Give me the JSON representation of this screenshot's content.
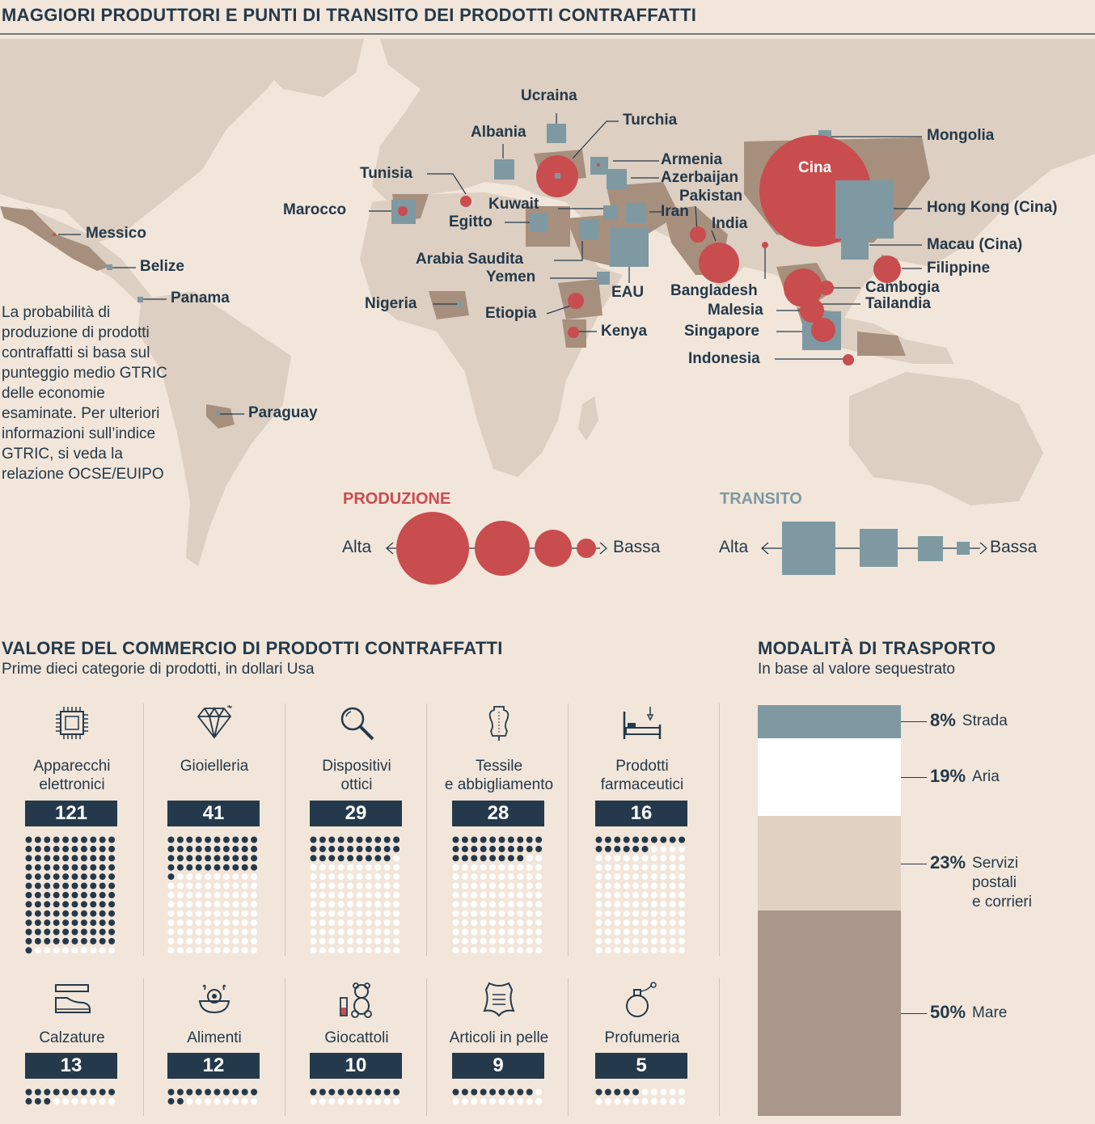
{
  "map": {
    "title": "MAGGIORI PRODUTTORI E PUNTI DI TRANSITO DEI PRODOTTI CONTRAFFATTI",
    "note": "La probabilità di produzione di prodotti contraffatti si basa sul punteggio medio GTRIC delle economie esaminate. Per ulteriori informazioni sull’indice GTRIC, si veda la relazione OCSE/EUIPO",
    "labels": [
      "Ucraina",
      "Turchia",
      "Albania",
      "Armenia",
      "Azerbaijan",
      "Tunisia",
      "Pakistan",
      "Marocco",
      "Kuwait",
      "Iran",
      "Egitto",
      "India",
      "Arabia Saudita",
      "Yemen",
      "EAU",
      "Bangladesh",
      "Nigeria",
      "Etiopia",
      "Kenya",
      "Messico",
      "Belize",
      "Panama",
      "Paraguay",
      "Cina",
      "Mongolia",
      "Hong Kong (Cina)",
      "Macau (Cina)",
      "Filippine",
      "Cambogia",
      "Tailandia",
      "Malesia",
      "Singapore",
      "Indonesia"
    ],
    "legend": {
      "production_title": "PRODUZIONE",
      "transit_title": "TRANSITO",
      "high": "Alta",
      "low": "Bassa"
    },
    "colors": {
      "production": "#c94c4f",
      "transit": "#7e99a2",
      "land": "#ddcfc1",
      "highlight": "#a68f7d",
      "bg": "#f2e6da"
    }
  },
  "trade": {
    "title": "VALORE DEL COMMERCIO DI PRODOTTI CONTRAFFATTI",
    "subtitle": "Prime dieci categorie di prodotti, in dollari Usa",
    "categories": [
      {
        "label": "Apparecchi\nelettronici",
        "value": "121",
        "icon": "chip-icon"
      },
      {
        "label": "Gioielleria",
        "value": "41",
        "icon": "diamond-icon"
      },
      {
        "label": "Dispositivi\nottici",
        "value": "29",
        "icon": "magnifier-icon"
      },
      {
        "label": "Tessile\ne abbigliamento",
        "value": "28",
        "icon": "mannequin-icon"
      },
      {
        "label": "Prodotti\nfarmaceutici",
        "value": "16",
        "icon": "hospital-bed-icon"
      },
      {
        "label": "Calzature",
        "value": "13",
        "icon": "shoe-icon"
      },
      {
        "label": "Alimenti",
        "value": "12",
        "icon": "food-bowl-icon"
      },
      {
        "label": "Giocattoli",
        "value": "10",
        "icon": "teddy-bear-icon"
      },
      {
        "label": "Articoli in pelle",
        "value": "9",
        "icon": "leather-icon"
      },
      {
        "label": "Profumeria",
        "value": "5",
        "icon": "perfume-icon"
      }
    ]
  },
  "transport": {
    "title": "MODALITÀ DI TRASPORTO",
    "subtitle": "In base al valore sequestrato",
    "segments": [
      {
        "pct": "8%",
        "label": "Strada",
        "value": 8,
        "color": "#7e99a2"
      },
      {
        "pct": "19%",
        "label": "Aria",
        "value": 19,
        "color": "#ffffff"
      },
      {
        "pct": "23%",
        "label": "Servizi\npostali\ne corrieri",
        "value": 23,
        "color": "#e0d1c3"
      },
      {
        "pct": "50%",
        "label": "Mare",
        "value": 50,
        "color": "#a8978a"
      }
    ]
  }
}
